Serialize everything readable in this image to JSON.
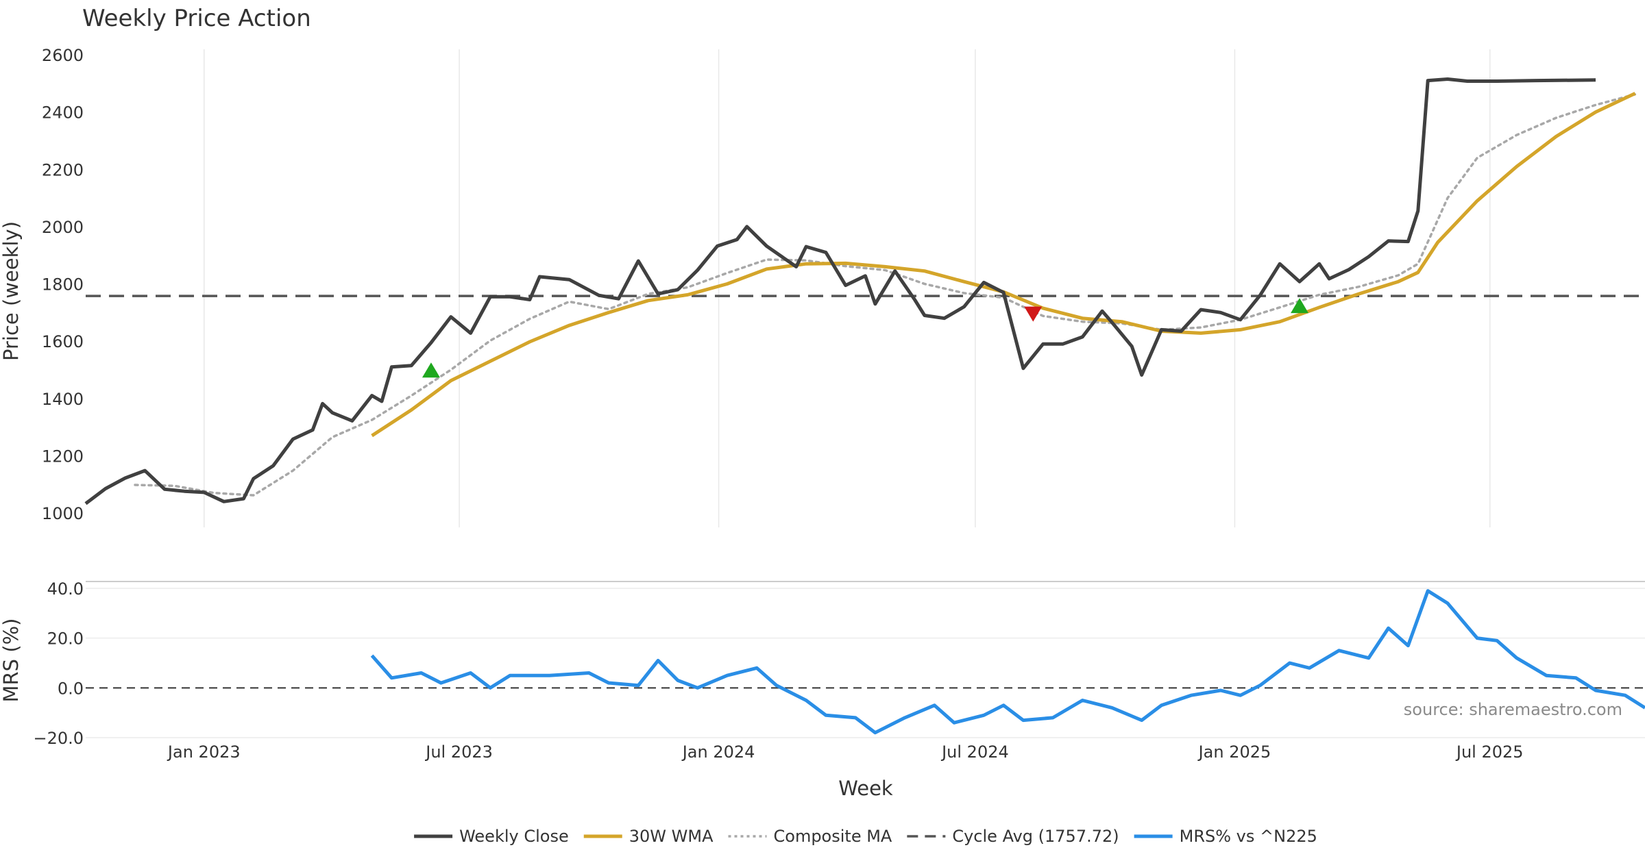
{
  "chart_data": [
    {
      "type": "line",
      "title": "Weekly Price Action",
      "ylabel": "Price (weekly)",
      "xlabel": "",
      "ylim": [
        1000,
        2600
      ],
      "yticks": [
        1000,
        1200,
        1400,
        1600,
        1800,
        2000,
        2200,
        2400,
        2600
      ],
      "xticks": [
        {
          "date": "2023-01-01",
          "label": "Jan 2023"
        },
        {
          "date": "2023-07-01",
          "label": "Jul 2023"
        },
        {
          "date": "2024-01-01",
          "label": "Jan 2024"
        },
        {
          "date": "2024-07-01",
          "label": "Jul 2024"
        },
        {
          "date": "2025-01-01",
          "label": "Jan 2025"
        },
        {
          "date": "2025-07-01",
          "label": "Jul 2025"
        }
      ],
      "grid": true,
      "series": [
        {
          "name": "Weekly Close",
          "color": "#404040",
          "style": "solid",
          "points": [
            [
              "2022-10-09",
              1033
            ],
            [
              "2022-10-23",
              1085
            ],
            [
              "2022-11-06",
              1122
            ],
            [
              "2022-11-20",
              1148
            ],
            [
              "2022-12-04",
              1083
            ],
            [
              "2022-12-18",
              1076
            ],
            [
              "2023-01-01",
              1072
            ],
            [
              "2023-01-15",
              1040
            ],
            [
              "2023-01-29",
              1050
            ],
            [
              "2023-02-05",
              1120
            ],
            [
              "2023-02-19",
              1165
            ],
            [
              "2023-03-05",
              1258
            ],
            [
              "2023-03-19",
              1290
            ],
            [
              "2023-03-26",
              1382
            ],
            [
              "2023-04-02",
              1350
            ],
            [
              "2023-04-16",
              1322
            ],
            [
              "2023-04-30",
              1410
            ],
            [
              "2023-05-07",
              1390
            ],
            [
              "2023-05-14",
              1510
            ],
            [
              "2023-05-28",
              1515
            ],
            [
              "2023-06-11",
              1595
            ],
            [
              "2023-06-25",
              1685
            ],
            [
              "2023-07-09",
              1628
            ],
            [
              "2023-07-23",
              1755
            ],
            [
              "2023-08-06",
              1755
            ],
            [
              "2023-08-20",
              1745
            ],
            [
              "2023-08-27",
              1825
            ],
            [
              "2023-09-17",
              1815
            ],
            [
              "2023-10-08",
              1760
            ],
            [
              "2023-10-22",
              1748
            ],
            [
              "2023-11-05",
              1880
            ],
            [
              "2023-11-19",
              1765
            ],
            [
              "2023-12-03",
              1780
            ],
            [
              "2023-12-17",
              1848
            ],
            [
              "2023-12-31",
              1932
            ],
            [
              "2024-01-14",
              1955
            ],
            [
              "2024-01-21",
              2000
            ],
            [
              "2024-02-04",
              1932
            ],
            [
              "2024-02-25",
              1860
            ],
            [
              "2024-03-03",
              1930
            ],
            [
              "2024-03-17",
              1910
            ],
            [
              "2024-03-31",
              1795
            ],
            [
              "2024-04-14",
              1828
            ],
            [
              "2024-04-21",
              1730
            ],
            [
              "2024-05-05",
              1845
            ],
            [
              "2024-05-19",
              1745
            ],
            [
              "2024-05-26",
              1690
            ],
            [
              "2024-06-09",
              1680
            ],
            [
              "2024-06-23",
              1720
            ],
            [
              "2024-07-07",
              1805
            ],
            [
              "2024-07-21",
              1770
            ],
            [
              "2024-08-04",
              1505
            ],
            [
              "2024-08-18",
              1590
            ],
            [
              "2024-09-01",
              1590
            ],
            [
              "2024-09-15",
              1615
            ],
            [
              "2024-09-29",
              1705
            ],
            [
              "2024-10-06",
              1665
            ],
            [
              "2024-10-20",
              1582
            ],
            [
              "2024-10-27",
              1482
            ],
            [
              "2024-11-10",
              1640
            ],
            [
              "2024-11-24",
              1635
            ],
            [
              "2024-12-08",
              1710
            ],
            [
              "2024-12-22",
              1700
            ],
            [
              "2025-01-05",
              1675
            ],
            [
              "2025-01-19",
              1760
            ],
            [
              "2025-02-02",
              1870
            ],
            [
              "2025-02-16",
              1808
            ],
            [
              "2025-03-02",
              1870
            ],
            [
              "2025-03-09",
              1818
            ],
            [
              "2025-03-23",
              1850
            ],
            [
              "2025-04-06",
              1895
            ],
            [
              "2025-04-20",
              1950
            ],
            [
              "2025-05-04",
              1948
            ],
            [
              "2025-05-11",
              2055
            ],
            [
              "2025-05-18",
              2510
            ],
            [
              "2025-06-01",
              2515
            ],
            [
              "2025-06-15",
              2508
            ],
            [
              "2025-07-06",
              2508
            ],
            [
              "2025-08-03",
              2510
            ],
            [
              "2025-09-14",
              2512
            ]
          ]
        },
        {
          "name": "30W WMA",
          "color": "#d4a52a",
          "style": "solid",
          "points": [
            [
              "2023-04-30",
              1270
            ],
            [
              "2023-05-28",
              1360
            ],
            [
              "2023-06-25",
              1462
            ],
            [
              "2023-07-23",
              1530
            ],
            [
              "2023-08-20",
              1598
            ],
            [
              "2023-09-17",
              1655
            ],
            [
              "2023-10-15",
              1700
            ],
            [
              "2023-11-12",
              1742
            ],
            [
              "2023-12-10",
              1762
            ],
            [
              "2024-01-07",
              1800
            ],
            [
              "2024-02-04",
              1852
            ],
            [
              "2024-03-03",
              1870
            ],
            [
              "2024-03-31",
              1872
            ],
            [
              "2024-04-28",
              1860
            ],
            [
              "2024-05-26",
              1845
            ],
            [
              "2024-06-23",
              1808
            ],
            [
              "2024-07-21",
              1772
            ],
            [
              "2024-08-18",
              1715
            ],
            [
              "2024-09-15",
              1680
            ],
            [
              "2024-10-13",
              1668
            ],
            [
              "2024-11-10",
              1635
            ],
            [
              "2024-12-08",
              1628
            ],
            [
              "2025-01-05",
              1640
            ],
            [
              "2025-02-02",
              1668
            ],
            [
              "2025-03-02",
              1718
            ],
            [
              "2025-03-30",
              1765
            ],
            [
              "2025-04-27",
              1808
            ],
            [
              "2025-05-11",
              1840
            ],
            [
              "2025-05-25",
              1945
            ],
            [
              "2025-06-22",
              2090
            ],
            [
              "2025-07-20",
              2210
            ],
            [
              "2025-08-17",
              2315
            ],
            [
              "2025-09-14",
              2400
            ],
            [
              "2025-10-12",
              2465
            ]
          ]
        },
        {
          "name": "Composite MA",
          "color": "#a8a8a8",
          "style": "dotted",
          "points": [
            [
              "2022-11-13",
              1098
            ],
            [
              "2022-12-11",
              1095
            ],
            [
              "2023-01-08",
              1070
            ],
            [
              "2023-02-05",
              1062
            ],
            [
              "2023-03-05",
              1148
            ],
            [
              "2023-04-02",
              1265
            ],
            [
              "2023-04-30",
              1325
            ],
            [
              "2023-05-28",
              1410
            ],
            [
              "2023-06-25",
              1500
            ],
            [
              "2023-07-23",
              1602
            ],
            [
              "2023-08-20",
              1678
            ],
            [
              "2023-09-17",
              1738
            ],
            [
              "2023-10-15",
              1712
            ],
            [
              "2023-11-12",
              1765
            ],
            [
              "2023-12-10",
              1788
            ],
            [
              "2024-01-07",
              1838
            ],
            [
              "2024-02-04",
              1885
            ],
            [
              "2024-03-03",
              1882
            ],
            [
              "2024-03-31",
              1862
            ],
            [
              "2024-04-28",
              1848
            ],
            [
              "2024-05-26",
              1800
            ],
            [
              "2024-06-23",
              1768
            ],
            [
              "2024-07-21",
              1752
            ],
            [
              "2024-08-18",
              1688
            ],
            [
              "2024-09-15",
              1668
            ],
            [
              "2024-10-13",
              1662
            ],
            [
              "2024-11-10",
              1640
            ],
            [
              "2024-12-08",
              1648
            ],
            [
              "2025-01-05",
              1675
            ],
            [
              "2025-02-02",
              1718
            ],
            [
              "2025-03-02",
              1762
            ],
            [
              "2025-03-30",
              1790
            ],
            [
              "2025-04-27",
              1830
            ],
            [
              "2025-05-11",
              1870
            ],
            [
              "2025-06-01",
              2100
            ],
            [
              "2025-06-22",
              2240
            ],
            [
              "2025-07-20",
              2320
            ],
            [
              "2025-08-17",
              2380
            ],
            [
              "2025-09-14",
              2425
            ],
            [
              "2025-10-12",
              2462
            ]
          ]
        },
        {
          "name": "Cycle Avg (1757.72)",
          "color": "#555555",
          "style": "dashed",
          "hline": 1757.72
        }
      ],
      "markers": [
        {
          "date": "2023-06-11",
          "value": 1497,
          "direction": "up",
          "color": "#1fa81f"
        },
        {
          "date": "2024-08-11",
          "value": 1697,
          "direction": "down",
          "color": "#d01818"
        },
        {
          "date": "2025-02-16",
          "value": 1722,
          "direction": "up",
          "color": "#1fa81f"
        }
      ]
    },
    {
      "type": "line",
      "ylabel": "MRS (%)",
      "xlabel": "Week",
      "ylim": [
        -20,
        40
      ],
      "yticks": [
        {
          "value": 40,
          "label": "40.0"
        },
        {
          "value": 20,
          "label": "20.0"
        },
        {
          "value": 0,
          "label": "0.0"
        },
        {
          "value": -20,
          "label": "−20.0"
        }
      ],
      "zero_line": true,
      "series": [
        {
          "name": "MRS% vs ^N225",
          "color": "#2a8ee6",
          "style": "solid",
          "points": [
            [
              "2023-04-30",
              13
            ],
            [
              "2023-05-14",
              4
            ],
            [
              "2023-06-04",
              6
            ],
            [
              "2023-06-18",
              2
            ],
            [
              "2023-07-09",
              6
            ],
            [
              "2023-07-23",
              0
            ],
            [
              "2023-08-06",
              5
            ],
            [
              "2023-09-03",
              5
            ],
            [
              "2023-10-01",
              6
            ],
            [
              "2023-10-15",
              2
            ],
            [
              "2023-11-05",
              1
            ],
            [
              "2023-11-19",
              11
            ],
            [
              "2023-12-03",
              3
            ],
            [
              "2023-12-17",
              0
            ],
            [
              "2024-01-07",
              5
            ],
            [
              "2024-01-28",
              8
            ],
            [
              "2024-02-11",
              1
            ],
            [
              "2024-03-03",
              -5
            ],
            [
              "2024-03-17",
              -11
            ],
            [
              "2024-04-07",
              -12
            ],
            [
              "2024-04-21",
              -18
            ],
            [
              "2024-05-12",
              -12
            ],
            [
              "2024-06-02",
              -7
            ],
            [
              "2024-06-16",
              -14
            ],
            [
              "2024-07-07",
              -11
            ],
            [
              "2024-07-21",
              -7
            ],
            [
              "2024-08-04",
              -13
            ],
            [
              "2024-08-25",
              -12
            ],
            [
              "2024-09-15",
              -5
            ],
            [
              "2024-10-06",
              -8
            ],
            [
              "2024-10-27",
              -13
            ],
            [
              "2024-11-10",
              -7
            ],
            [
              "2024-12-01",
              -3
            ],
            [
              "2024-12-22",
              -1
            ],
            [
              "2025-01-05",
              -3
            ],
            [
              "2025-01-19",
              1
            ],
            [
              "2025-02-09",
              10
            ],
            [
              "2025-02-23",
              8
            ],
            [
              "2025-03-16",
              15
            ],
            [
              "2025-04-06",
              12
            ],
            [
              "2025-04-20",
              24
            ],
            [
              "2025-05-04",
              17
            ],
            [
              "2025-05-18",
              39
            ],
            [
              "2025-06-01",
              34
            ],
            [
              "2025-06-22",
              20
            ],
            [
              "2025-07-06",
              19
            ],
            [
              "2025-07-20",
              12
            ],
            [
              "2025-08-10",
              5
            ],
            [
              "2025-08-31",
              4
            ],
            [
              "2025-09-14",
              -1
            ],
            [
              "2025-10-05",
              -3
            ],
            [
              "2025-10-19",
              -8
            ]
          ]
        }
      ]
    }
  ],
  "source_note": "source: sharemaestro.com",
  "legend": [
    {
      "label": "Weekly Close",
      "color": "#404040",
      "style": "solid"
    },
    {
      "label": "30W WMA",
      "color": "#d4a52a",
      "style": "solid"
    },
    {
      "label": "Composite MA",
      "color": "#a8a8a8",
      "style": "dotted"
    },
    {
      "label": "Cycle Avg (1757.72)",
      "color": "#555555",
      "style": "dashed"
    },
    {
      "label": "MRS% vs ^N225",
      "color": "#2a8ee6",
      "style": "solid"
    }
  ],
  "legend_position": "bottom-center"
}
